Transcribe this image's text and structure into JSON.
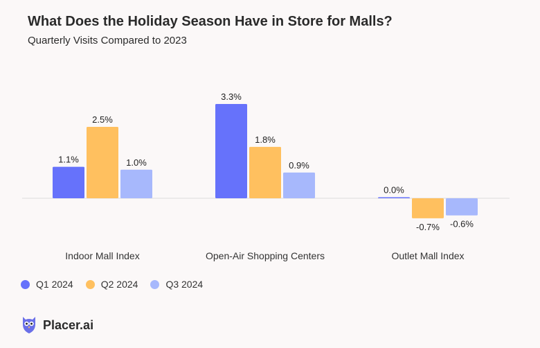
{
  "header": {
    "title": "What Does the Holiday Season Have in Store for Malls?",
    "subtitle": "Quarterly Visits Compared to 2023"
  },
  "brand": {
    "name": "Placer.ai",
    "icon": "owl-logo-icon",
    "color": "#6a6fe8"
  },
  "chart_data": {
    "type": "bar",
    "categories": [
      "Indoor Mall Index",
      "Open-Air Shopping Centers",
      "Outlet Mall Index"
    ],
    "series": [
      {
        "name": "Q1 2024",
        "color": "#6672fb",
        "values": [
          1.1,
          3.3,
          0.0
        ],
        "labels": [
          "1.1%",
          "3.3%",
          "0.0%"
        ]
      },
      {
        "name": "Q2 2024",
        "color": "#ffc05f",
        "values": [
          2.5,
          1.8,
          -0.7
        ],
        "labels": [
          "2.5%",
          "1.8%",
          "-0.7%"
        ]
      },
      {
        "name": "Q3 2024",
        "color": "#a7b8fc",
        "values": [
          1.0,
          0.9,
          -0.6
        ],
        "labels": [
          "1.0%",
          "0.9%",
          "-0.6%"
        ]
      }
    ],
    "title": "What Does the Holiday Season Have in Store for Malls?",
    "subtitle": "Quarterly Visits Compared to 2023",
    "ylim": [
      -0.7,
      3.3
    ],
    "grid": false,
    "legend": "bottom-left"
  }
}
